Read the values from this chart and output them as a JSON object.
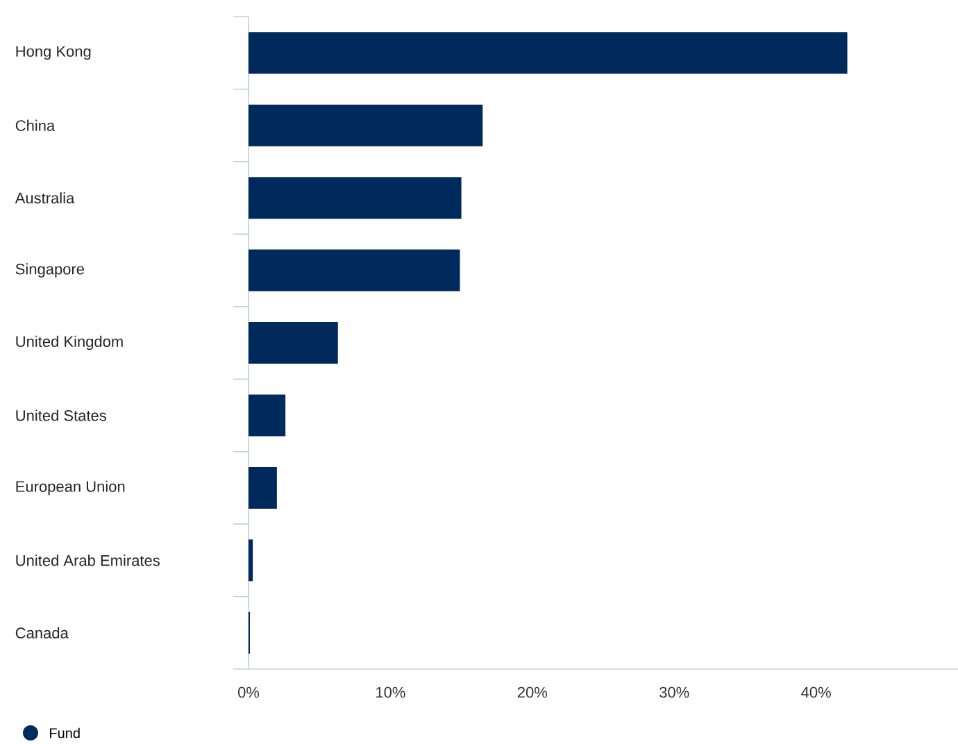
{
  "chart_data": {
    "type": "bar",
    "orientation": "horizontal",
    "categories": [
      "Hong Kong",
      "China",
      "Australia",
      "Singapore",
      "United Kingdom",
      "United States",
      "European Union",
      "United Arab Emirates",
      "Canada"
    ],
    "series": [
      {
        "name": "Fund",
        "color": "#002a5c",
        "values": [
          42.2,
          16.5,
          15.0,
          14.9,
          6.3,
          2.6,
          2.0,
          0.3,
          0.1
        ]
      }
    ],
    "xlim": [
      0,
      50
    ],
    "xticks": [
      {
        "value": 0,
        "label": "0%"
      },
      {
        "value": 10,
        "label": "10%"
      },
      {
        "value": 20,
        "label": "20%"
      },
      {
        "value": 30,
        "label": "30%"
      },
      {
        "value": 40,
        "label": "40%"
      }
    ],
    "legend": "bottom left"
  }
}
